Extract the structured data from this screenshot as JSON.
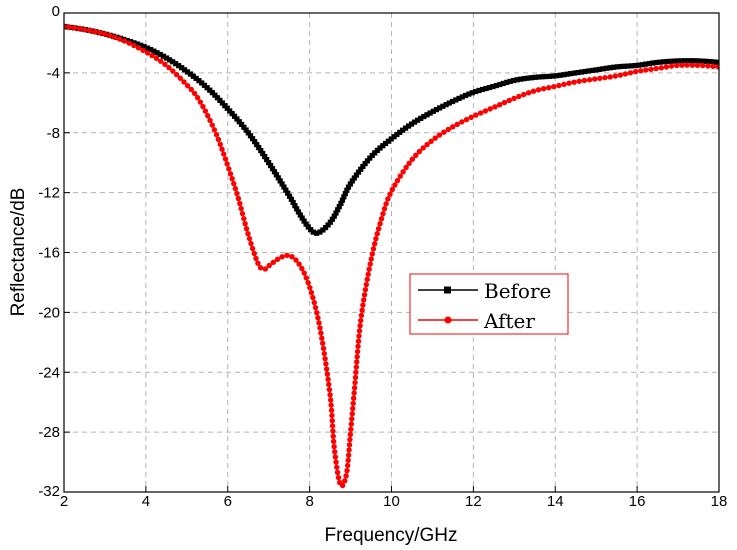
{
  "chart_data": {
    "type": "line",
    "title": "",
    "xlabel": "Frequency/GHz",
    "ylabel": "Reflectance/dB",
    "xlim": [
      2,
      18
    ],
    "ylim": [
      -32,
      0
    ],
    "xticks": [
      2,
      4,
      6,
      8,
      10,
      12,
      14,
      16,
      18
    ],
    "yticks": [
      0,
      -4,
      -8,
      -12,
      -16,
      -20,
      -24,
      -28,
      -32
    ],
    "xtick_labels": [
      "2",
      "4",
      "6",
      "8",
      "10",
      "12",
      "14",
      "16",
      "18"
    ],
    "ytick_labels": [
      "0",
      "-4",
      "-8",
      "-12",
      "-16",
      "-20",
      "-24",
      "-28",
      "-32"
    ],
    "grid": true,
    "grid_style": "dashed",
    "legend_position": "center-right",
    "series": [
      {
        "name": "Before",
        "color": "#000000",
        "marker": "square",
        "points": [
          [
            2.0,
            -0.9
          ],
          [
            2.5,
            -1.1
          ],
          [
            3.0,
            -1.4
          ],
          [
            3.5,
            -1.8
          ],
          [
            4.0,
            -2.3
          ],
          [
            4.5,
            -3.0
          ],
          [
            5.0,
            -3.9
          ],
          [
            5.5,
            -5.0
          ],
          [
            6.0,
            -6.4
          ],
          [
            6.5,
            -8.0
          ],
          [
            7.0,
            -10.0
          ],
          [
            7.5,
            -12.2
          ],
          [
            7.75,
            -13.4
          ],
          [
            8.0,
            -14.4
          ],
          [
            8.2,
            -14.7
          ],
          [
            8.5,
            -14.0
          ],
          [
            8.75,
            -12.8
          ],
          [
            9.0,
            -11.4
          ],
          [
            9.5,
            -9.6
          ],
          [
            10.0,
            -8.4
          ],
          [
            10.5,
            -7.4
          ],
          [
            11.0,
            -6.6
          ],
          [
            11.5,
            -5.9
          ],
          [
            12.0,
            -5.3
          ],
          [
            12.5,
            -4.9
          ],
          [
            13.0,
            -4.5
          ],
          [
            13.5,
            -4.3
          ],
          [
            14.0,
            -4.2
          ],
          [
            14.5,
            -4.0
          ],
          [
            15.0,
            -3.8
          ],
          [
            15.5,
            -3.6
          ],
          [
            16.0,
            -3.5
          ],
          [
            16.5,
            -3.3
          ],
          [
            17.0,
            -3.2
          ],
          [
            17.5,
            -3.2
          ],
          [
            18.0,
            -3.3
          ]
        ]
      },
      {
        "name": "After",
        "color": "#ff0000",
        "marker": "circle",
        "points": [
          [
            2.0,
            -0.9
          ],
          [
            2.5,
            -1.1
          ],
          [
            3.0,
            -1.4
          ],
          [
            3.5,
            -1.9
          ],
          [
            4.0,
            -2.6
          ],
          [
            4.5,
            -3.5
          ],
          [
            5.0,
            -4.8
          ],
          [
            5.25,
            -5.6
          ],
          [
            5.5,
            -6.8
          ],
          [
            5.75,
            -8.3
          ],
          [
            6.0,
            -10.2
          ],
          [
            6.25,
            -12.3
          ],
          [
            6.5,
            -14.8
          ],
          [
            6.75,
            -16.8
          ],
          [
            6.9,
            -17.1
          ],
          [
            7.0,
            -16.9
          ],
          [
            7.25,
            -16.4
          ],
          [
            7.5,
            -16.2
          ],
          [
            7.75,
            -16.8
          ],
          [
            8.0,
            -18.3
          ],
          [
            8.25,
            -21.0
          ],
          [
            8.5,
            -25.5
          ],
          [
            8.6,
            -29.0
          ],
          [
            8.75,
            -31.5
          ],
          [
            8.9,
            -30.8
          ],
          [
            9.0,
            -28.0
          ],
          [
            9.1,
            -25.0
          ],
          [
            9.25,
            -20.5
          ],
          [
            9.5,
            -16.5
          ],
          [
            9.75,
            -13.8
          ],
          [
            10.0,
            -11.9
          ],
          [
            10.5,
            -9.8
          ],
          [
            11.0,
            -8.5
          ],
          [
            11.5,
            -7.6
          ],
          [
            12.0,
            -6.9
          ],
          [
            12.5,
            -6.3
          ],
          [
            13.0,
            -5.7
          ],
          [
            13.5,
            -5.2
          ],
          [
            14.0,
            -4.9
          ],
          [
            14.5,
            -4.6
          ],
          [
            15.0,
            -4.4
          ],
          [
            15.5,
            -4.2
          ],
          [
            16.0,
            -3.9
          ],
          [
            16.5,
            -3.7
          ],
          [
            17.0,
            -3.5
          ],
          [
            17.5,
            -3.5
          ],
          [
            18.0,
            -3.6
          ]
        ]
      }
    ]
  }
}
